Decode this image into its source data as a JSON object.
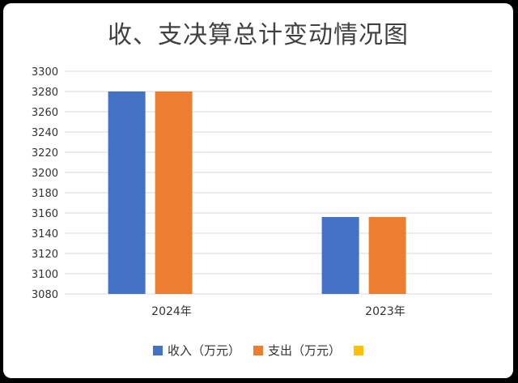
{
  "chart_data": {
    "type": "bar",
    "title": "收、支决算总计变动情况图",
    "categories": [
      "2024年",
      "2023年"
    ],
    "series": [
      {
        "name": "收入（万元）",
        "values": [
          3280,
          3156
        ],
        "color": "#4472C4"
      },
      {
        "name": "支出（万元）",
        "values": [
          3280,
          3156
        ],
        "color": "#ED7D31"
      },
      {
        "name": "",
        "values": [
          null,
          null
        ],
        "color": "#FFC000"
      }
    ],
    "yticks": [
      "3080",
      "3100",
      "3120",
      "3140",
      "3160",
      "3180",
      "3200",
      "3220",
      "3240",
      "3260",
      "3280",
      "3300"
    ],
    "ylim": [
      3080,
      3300
    ],
    "grid": true,
    "legend_position": "bottom"
  }
}
